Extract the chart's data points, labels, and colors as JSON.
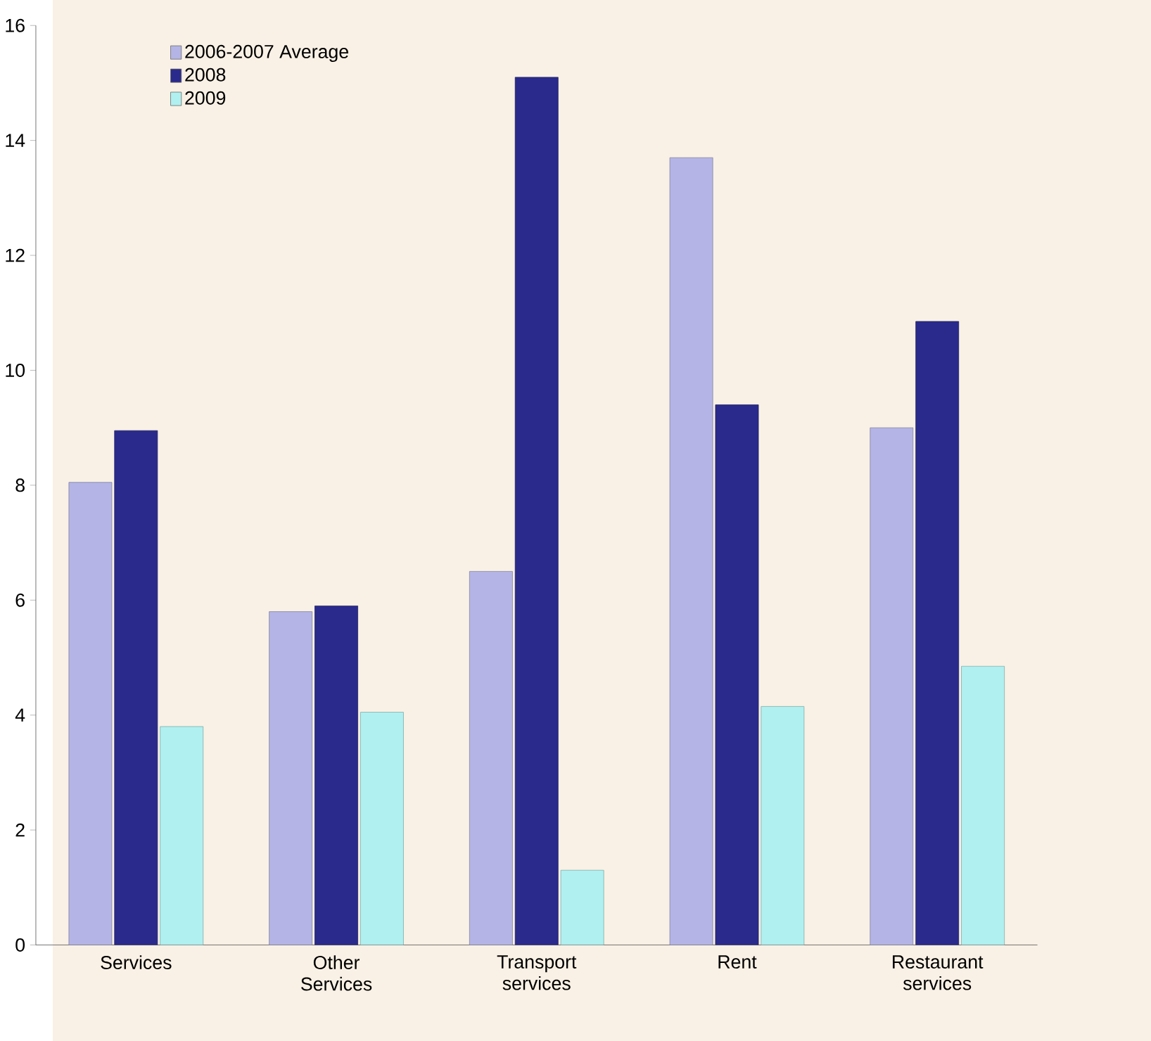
{
  "chart_data": {
    "type": "bar",
    "categories": [
      "Services",
      "Other Services",
      "Transport services",
      "Rent",
      "Restaurant services"
    ],
    "series": [
      {
        "name": "2006-2007 Average",
        "color": "#b4b4e6",
        "values": [
          8.05,
          5.8,
          6.5,
          13.7,
          9.0
        ]
      },
      {
        "name": "2008",
        "color": "#2a2a8c",
        "values": [
          8.95,
          5.9,
          15.1,
          9.4,
          10.85
        ]
      },
      {
        "name": "2009",
        "color": "#b0f0f0",
        "values": [
          3.8,
          4.05,
          1.3,
          4.15,
          4.85
        ]
      }
    ],
    "ylim": [
      0,
      16
    ],
    "yticks": [
      0,
      2,
      4,
      6,
      8,
      10,
      12,
      14,
      16
    ],
    "grid": false,
    "legend": "top left"
  }
}
